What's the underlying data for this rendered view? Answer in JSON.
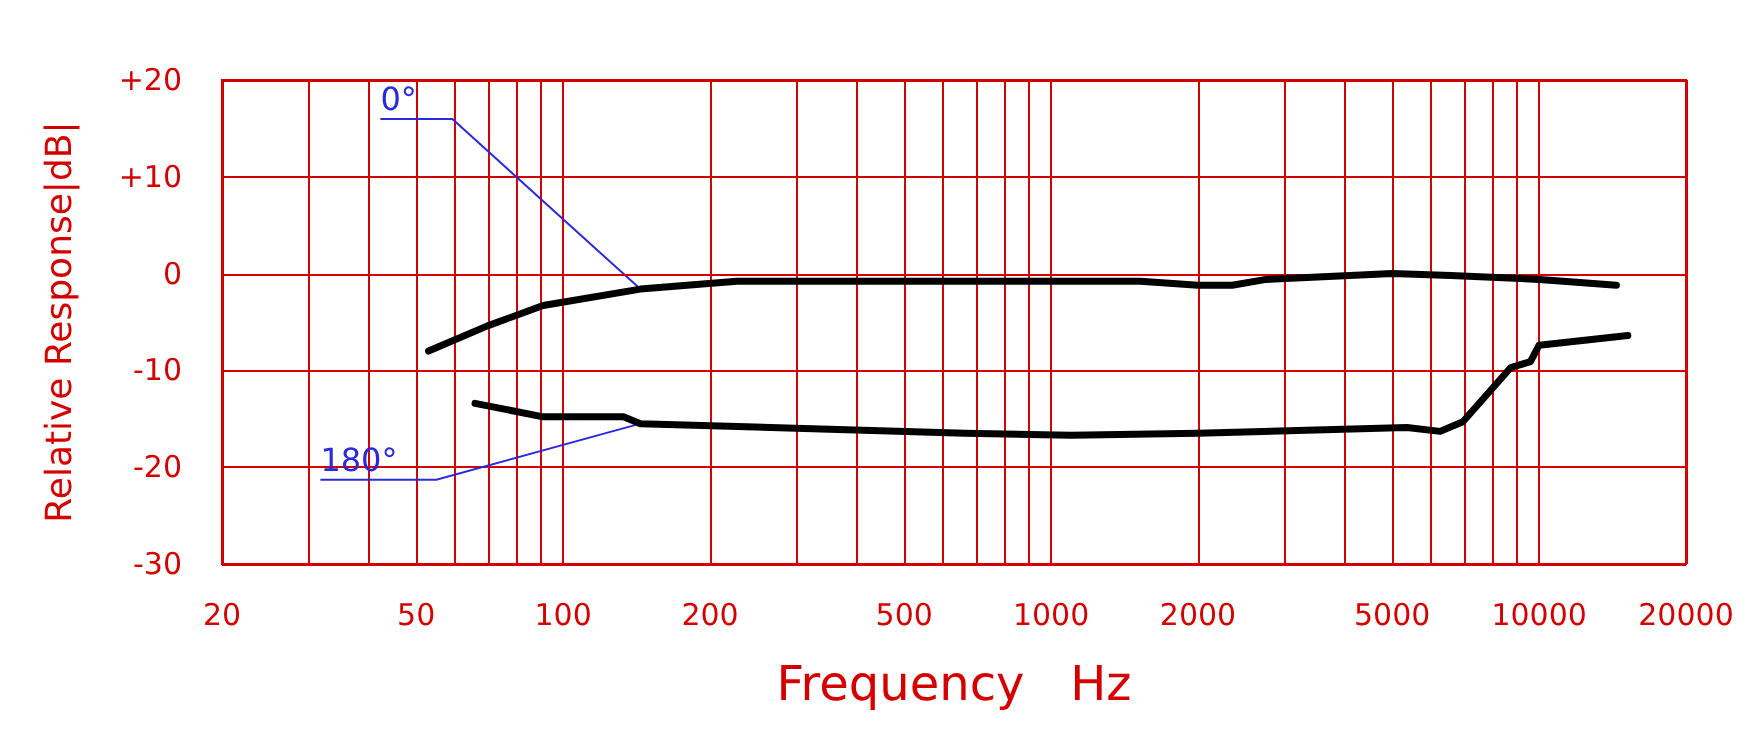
{
  "chart_data": {
    "type": "line",
    "xlabel": "Frequency   Hz",
    "ylabel": "Relative Response|dB|",
    "log": "x",
    "xlim": [
      20,
      20000
    ],
    "ylim": [
      -30,
      20
    ],
    "xticks": [
      20,
      {
        "value": 30,
        "label": null
      },
      {
        "value": 40,
        "label": null
      },
      50,
      {
        "value": 60,
        "label": null
      },
      {
        "value": 70,
        "label": null
      },
      {
        "value": 80,
        "label": null
      },
      {
        "value": 90,
        "label": null
      },
      100,
      200,
      {
        "value": 300,
        "label": null
      },
      {
        "value": 400,
        "label": null
      },
      500,
      {
        "value": 600,
        "label": null
      },
      {
        "value": 700,
        "label": null
      },
      {
        "value": 800,
        "label": null
      },
      {
        "value": 900,
        "label": null
      },
      1000,
      2000,
      {
        "value": 3000,
        "label": null
      },
      {
        "value": 4000,
        "label": null
      },
      5000,
      {
        "value": 6000,
        "label": null
      },
      {
        "value": 7000,
        "label": null
      },
      {
        "value": 8000,
        "label": null
      },
      {
        "value": 9000,
        "label": null
      },
      10000,
      20000
    ],
    "yticks": [
      {
        "value": 20,
        "label": "+20"
      },
      {
        "value": 10,
        "label": "+10"
      },
      0,
      -10,
      -20,
      -30
    ],
    "grid": true,
    "legend": false,
    "marker": "none",
    "line_style": "solid",
    "series": [
      {
        "name": "0°",
        "color": "#000000",
        "x": [
          53,
          70,
          91,
          144,
          227,
          1000,
          1525,
          2000,
          2350,
          2760,
          5000,
          6600,
          10000,
          11200,
          14400
        ],
        "values": [
          -8.0,
          -5.4,
          -3.3,
          -1.6,
          -0.8,
          -0.8,
          -0.8,
          -1.2,
          -1.2,
          -0.6,
          0,
          -0.2,
          -0.6,
          -0.8,
          -1.2
        ]
      },
      {
        "name": "180°",
        "color": "#000000",
        "x": [
          66,
          91,
          133,
          144,
          665,
          1100,
          2000,
          5360,
          6270,
          6980,
          8750,
          9600,
          10000,
          15200
        ],
        "values": [
          -13.4,
          -14.8,
          -14.8,
          -15.5,
          -16.5,
          -16.7,
          -16.5,
          -15.9,
          -16.3,
          -15.3,
          -9.7,
          -9.1,
          -7.4,
          -6.4
        ]
      }
    ]
  }
}
